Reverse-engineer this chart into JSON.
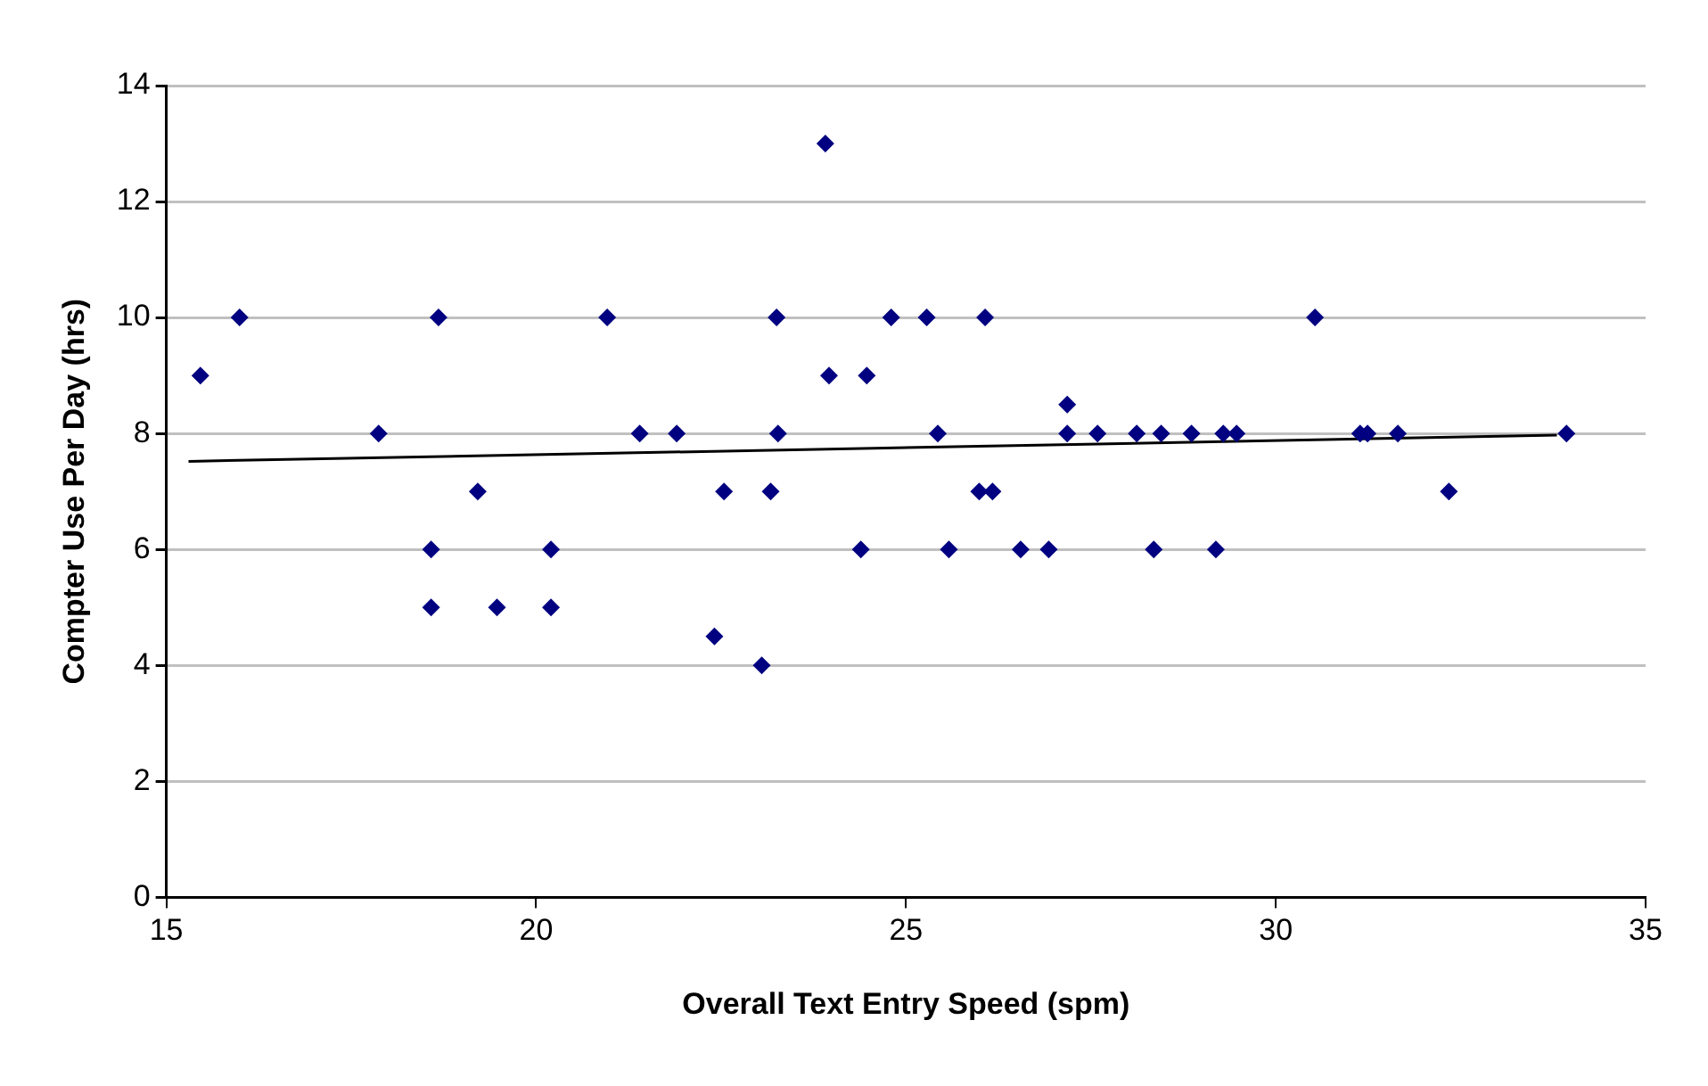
{
  "chart_data": {
    "type": "scatter",
    "xlabel": "Overall Text Entry Speed (spm)",
    "ylabel": "Compter Use Per Day (hrs)",
    "xlim": [
      15,
      35
    ],
    "xticks": [
      15,
      20,
      25,
      30,
      35
    ],
    "ylim": [
      0,
      14
    ],
    "yticks": [
      0,
      2,
      4,
      6,
      8,
      10,
      12,
      14
    ],
    "grid": "y",
    "legend": false,
    "series": [
      {
        "marker": "diamond",
        "color": "#000080",
        "x": [
          15.46,
          15.99,
          17.87,
          18.58,
          18.58,
          18.68,
          19.21,
          19.47,
          20.2,
          20.2,
          20.96,
          21.4,
          21.9,
          22.41,
          22.54,
          23.05,
          23.17,
          23.25,
          23.27,
          23.91,
          23.96,
          24.39,
          24.47,
          24.8,
          25.28,
          25.43,
          25.58,
          25.99,
          26.07,
          26.17,
          26.55,
          26.93,
          27.18,
          27.18,
          27.59,
          28.12,
          28.35,
          28.45,
          28.86,
          29.19,
          29.29,
          29.47,
          30.53,
          31.14,
          31.24,
          31.65,
          32.34,
          33.93
        ],
        "values": [
          9,
          10,
          8,
          6,
          5,
          10,
          7,
          5,
          6,
          5,
          10,
          8,
          8,
          4.5,
          7,
          4,
          7,
          10,
          8,
          13,
          9,
          6,
          9,
          10,
          10,
          8,
          6,
          7,
          10,
          7,
          6,
          6,
          8.5,
          8,
          8,
          8,
          6,
          8,
          8,
          6,
          8,
          8,
          10,
          8,
          8,
          8,
          7,
          8
        ]
      },
      {
        "type": "line",
        "marker": "none",
        "color": "#000000",
        "x": [
          15.3,
          33.8
        ],
        "values": [
          7.52,
          7.97
        ]
      }
    ]
  }
}
